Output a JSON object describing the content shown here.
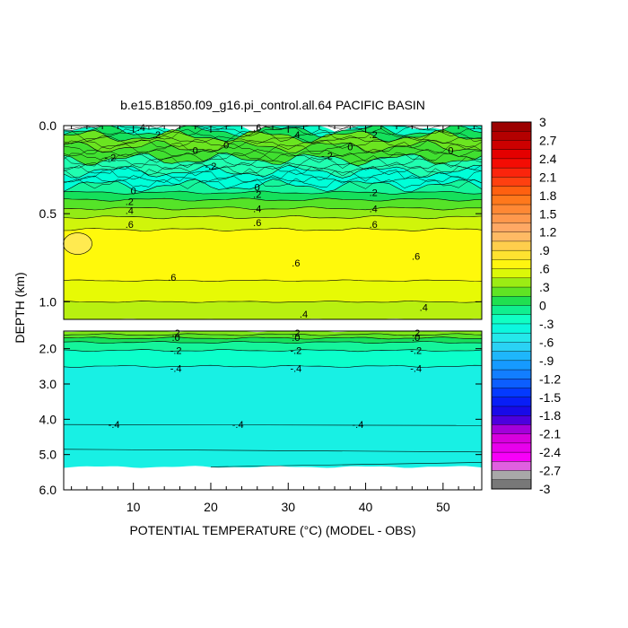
{
  "chart_data": {
    "type": "heatmap",
    "title": "b.e15.B1850.f09_g16.pi_control.all.64 PACIFIC BASIN",
    "xlabel": "POTENTIAL TEMPERATURE (°C) (MODEL - OBS)",
    "ylabel": "DEPTH (km)",
    "xlim": [
      1,
      55
    ],
    "x_ticks": [
      "10",
      "20",
      "30",
      "40",
      "50"
    ],
    "x_tick_values": [
      10,
      20,
      30,
      40,
      50
    ],
    "upper_panel": {
      "ylim": [
        0.0,
        1.1
      ],
      "y_ticks": [
        "0.0",
        "0.5",
        "1.0"
      ],
      "y_tick_values": [
        0.0,
        0.5,
        1.0
      ]
    },
    "lower_panel": {
      "ylim": [
        1.5,
        6.0
      ],
      "y_ticks": [
        "2.0",
        "3.0",
        "4.0",
        "5.0",
        "6.0"
      ],
      "y_tick_values": [
        2.0,
        3.0,
        4.0,
        5.0,
        6.0
      ]
    },
    "colorbar": {
      "min": -3,
      "max": 3,
      "step": 0.15,
      "labels": [
        "3",
        "2.7",
        "2.4",
        "2.1",
        "1.8",
        "1.5",
        "1.2",
        ".9",
        ".6",
        ".3",
        "0",
        "-.3",
        "-.6",
        "-.9",
        "-1.2",
        "-1.5",
        "-1.8",
        "-2.1",
        "-2.4",
        "-2.7",
        "-3"
      ],
      "label_values": [
        3,
        2.7,
        2.4,
        2.1,
        1.8,
        1.5,
        1.2,
        0.9,
        0.6,
        0.3,
        0,
        -0.3,
        -0.6,
        -0.9,
        -1.2,
        -1.5,
        -1.8,
        -2.1,
        -2.4,
        -2.7,
        -3
      ]
    },
    "upper_bands": [
      {
        "depth": 0.0,
        "value": -0.25
      },
      {
        "depth": 0.03,
        "value": 0.05
      },
      {
        "depth": 0.06,
        "value": 0.25
      },
      {
        "depth": 0.12,
        "value": 0.15
      },
      {
        "depth": 0.19,
        "value": -0.15
      },
      {
        "depth": 0.26,
        "value": -0.3
      },
      {
        "depth": 0.34,
        "value": -0.1
      },
      {
        "depth": 0.38,
        "value": 0.05
      },
      {
        "depth": 0.42,
        "value": 0.2
      },
      {
        "depth": 0.47,
        "value": 0.35
      },
      {
        "depth": 0.52,
        "value": 0.5
      },
      {
        "depth": 0.59,
        "value": 0.65
      },
      {
        "depth": 0.88,
        "value": 0.55
      },
      {
        "depth": 1.0,
        "value": 0.45
      },
      {
        "depth": 1.1,
        "value": 0.45
      }
    ],
    "lower_bands": [
      {
        "depth": 1.5,
        "value": 0.3
      },
      {
        "depth": 1.6,
        "value": 0.2
      },
      {
        "depth": 1.7,
        "value": 0.05
      },
      {
        "depth": 1.82,
        "value": -0.1
      },
      {
        "depth": 2.05,
        "value": -0.25
      },
      {
        "depth": 2.5,
        "value": -0.45
      },
      {
        "depth": 5.35,
        "value": null
      }
    ],
    "contour_labels": [
      {
        "text": ".4",
        "x": 11.0,
        "depth": 0.01,
        "panel": "upper"
      },
      {
        "text": ".6",
        "x": 26.0,
        "depth": 0.01,
        "panel": "upper"
      },
      {
        "text": ".4",
        "x": 31.0,
        "depth": 0.05,
        "panel": "upper"
      },
      {
        "text": ".2",
        "x": 13.0,
        "depth": 0.05,
        "panel": "upper"
      },
      {
        "text": ".2",
        "x": 41.0,
        "depth": 0.05,
        "panel": "upper"
      },
      {
        "text": "0",
        "x": 22.0,
        "depth": 0.11,
        "panel": "upper"
      },
      {
        "text": "0",
        "x": 18.0,
        "depth": 0.14,
        "panel": "upper"
      },
      {
        "text": "0",
        "x": 38.0,
        "depth": 0.12,
        "panel": "upper"
      },
      {
        "text": "0",
        "x": 51.0,
        "depth": 0.14,
        "panel": "upper"
      },
      {
        "text": "-.2",
        "x": 35.0,
        "depth": 0.17,
        "panel": "upper"
      },
      {
        "text": "-.2",
        "x": 7.0,
        "depth": 0.18,
        "panel": "upper"
      },
      {
        "text": "-.2",
        "x": 20.0,
        "depth": 0.23,
        "panel": "upper"
      },
      {
        "text": "0",
        "x": 10.0,
        "depth": 0.37,
        "panel": "upper"
      },
      {
        "text": "0",
        "x": 26.0,
        "depth": 0.35,
        "panel": "upper"
      },
      {
        "text": ".2",
        "x": 9.5,
        "depth": 0.43,
        "panel": "upper"
      },
      {
        "text": ".2",
        "x": 26.0,
        "depth": 0.39,
        "panel": "upper"
      },
      {
        "text": ".2",
        "x": 41.0,
        "depth": 0.38,
        "panel": "upper"
      },
      {
        "text": ".4",
        "x": 9.5,
        "depth": 0.48,
        "panel": "upper"
      },
      {
        "text": ".4",
        "x": 26.0,
        "depth": 0.47,
        "panel": "upper"
      },
      {
        "text": ".4",
        "x": 41.0,
        "depth": 0.47,
        "panel": "upper"
      },
      {
        "text": ".6",
        "x": 9.5,
        "depth": 0.56,
        "panel": "upper"
      },
      {
        "text": ".6",
        "x": 26.0,
        "depth": 0.55,
        "panel": "upper"
      },
      {
        "text": ".6",
        "x": 41.0,
        "depth": 0.56,
        "panel": "upper"
      },
      {
        "text": ".6",
        "x": 46.5,
        "depth": 0.74,
        "panel": "upper"
      },
      {
        "text": ".6",
        "x": 31.0,
        "depth": 0.78,
        "panel": "upper"
      },
      {
        "text": ".6",
        "x": 15.0,
        "depth": 0.86,
        "panel": "upper"
      },
      {
        "text": ".4",
        "x": 47.5,
        "depth": 1.03,
        "panel": "upper"
      },
      {
        "text": ".4",
        "x": 32.0,
        "depth": 1.07,
        "panel": "upper"
      },
      {
        "text": ".2",
        "x": 15.5,
        "depth": 1.55,
        "panel": "lower"
      },
      {
        "text": ".2",
        "x": 31.0,
        "depth": 1.55,
        "panel": "lower"
      },
      {
        "text": ".2",
        "x": 46.5,
        "depth": 1.55,
        "panel": "lower"
      },
      {
        "text": ".0",
        "x": 15.5,
        "depth": 1.68,
        "panel": "lower"
      },
      {
        "text": ".0",
        "x": 31.0,
        "depth": 1.68,
        "panel": "lower"
      },
      {
        "text": ".0",
        "x": 46.5,
        "depth": 1.68,
        "panel": "lower"
      },
      {
        "text": "-.2",
        "x": 15.5,
        "depth": 2.05,
        "panel": "lower"
      },
      {
        "text": "-.2",
        "x": 31.0,
        "depth": 2.05,
        "panel": "lower"
      },
      {
        "text": "-.2",
        "x": 46.5,
        "depth": 2.05,
        "panel": "lower"
      },
      {
        "text": "-.4",
        "x": 15.5,
        "depth": 2.55,
        "panel": "lower"
      },
      {
        "text": "-.4",
        "x": 31.0,
        "depth": 2.55,
        "panel": "lower"
      },
      {
        "text": "-.4",
        "x": 46.5,
        "depth": 2.55,
        "panel": "lower"
      },
      {
        "text": "-.4",
        "x": 7.5,
        "depth": 4.15,
        "panel": "lower"
      },
      {
        "text": "-.4",
        "x": 23.5,
        "depth": 4.15,
        "panel": "lower"
      },
      {
        "text": "-.4",
        "x": 39.0,
        "depth": 4.15,
        "panel": "lower"
      }
    ]
  }
}
